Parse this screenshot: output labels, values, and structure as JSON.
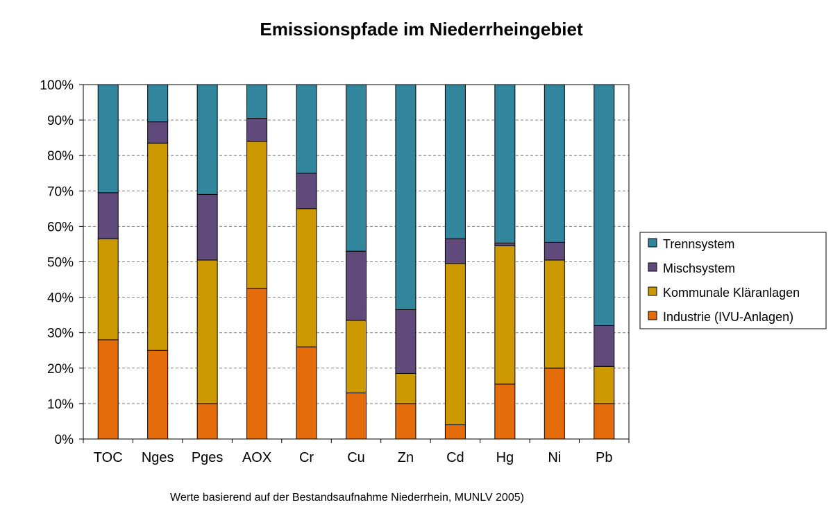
{
  "chart_data": {
    "type": "bar",
    "stacked": true,
    "percent_stacked": true,
    "title": "Emissionspfade  im Niederrheingebiet",
    "footnote": "Werte basierend  auf der Bestandsaufnahme  Niederrhein,  MUNLV 2005)",
    "categories": [
      "TOC",
      "Nges",
      "Pges",
      "AOX",
      "Cr",
      "Cu",
      "Zn",
      "Cd",
      "Hg",
      "Ni",
      "Pb"
    ],
    "ylim": [
      0,
      100
    ],
    "yticks": [
      "0%",
      "10%",
      "20%",
      "30%",
      "40%",
      "50%",
      "60%",
      "70%",
      "80%",
      "90%",
      "100%"
    ],
    "grid": true,
    "legend_position": "right",
    "series": [
      {
        "name": "Industrie (IVU-Anlagen)",
        "color": "#E46C0A",
        "values": [
          28,
          25,
          10,
          42.5,
          26,
          13,
          10,
          4,
          15.5,
          20,
          10
        ]
      },
      {
        "name": "Kommunale Kläranlagen",
        "color": "#CC9900",
        "values": [
          28.5,
          58.5,
          40.5,
          41.5,
          39,
          20.5,
          8.5,
          45.5,
          39,
          30.5,
          10.5
        ]
      },
      {
        "name": "Mischsystem",
        "color": "#604A7B",
        "values": [
          13,
          6,
          18.5,
          6.5,
          10,
          19.5,
          18,
          7,
          0.8,
          5,
          11.5
        ]
      },
      {
        "name": "Trennsystem",
        "color": "#31859C",
        "values": [
          30.5,
          10.5,
          31,
          9.5,
          25,
          47,
          63.5,
          43.5,
          44.7,
          44.5,
          68
        ]
      }
    ]
  }
}
